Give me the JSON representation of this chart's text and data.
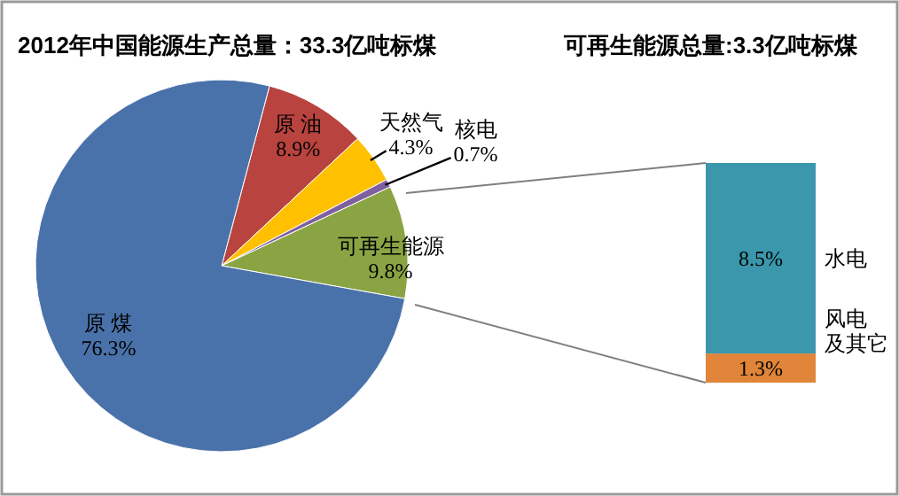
{
  "chart_data": [
    {
      "type": "pie",
      "title": "2012年中国能源生产总量：33.3亿吨标煤",
      "categories": [
        "原 油",
        "天然气",
        "核电",
        "可再生能源",
        "原 煤"
      ],
      "values": [
        8.9,
        4.3,
        0.7,
        9.8,
        76.3
      ],
      "colors": [
        "#b8433f",
        "#ffc000",
        "#7f5fa0",
        "#8aa444",
        "#4a72aa"
      ],
      "value_labels": [
        "8.9%",
        "4.3%",
        "0.7%",
        "9.8%",
        "76.3%"
      ]
    },
    {
      "type": "bar",
      "title": "可再生能源总量:3.3亿吨标煤",
      "stacked": true,
      "categories": [
        null
      ],
      "series": [
        {
          "name": "风电及其它",
          "color": "#e0853a",
          "values": [
            1.3
          ],
          "value_labels": [
            "1.3%"
          ]
        },
        {
          "name": "水电",
          "color": "#3b97ac",
          "values": [
            8.5
          ],
          "value_labels": [
            "8.5%"
          ]
        }
      ]
    }
  ]
}
